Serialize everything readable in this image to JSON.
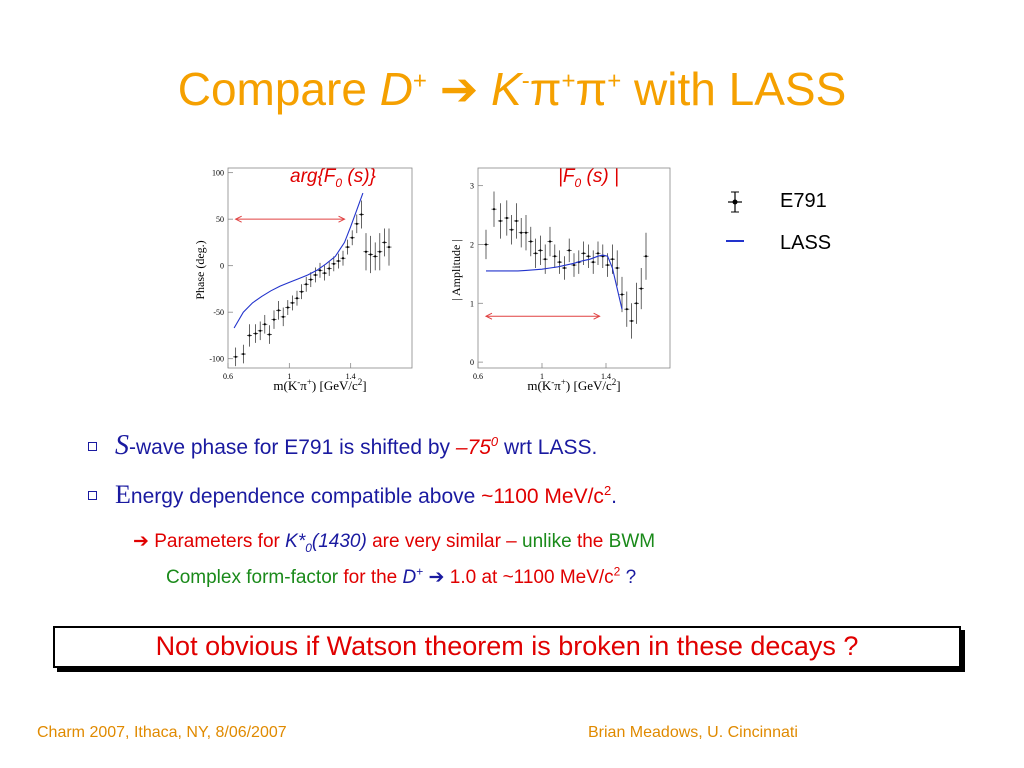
{
  "title": {
    "prefix": "Compare ",
    "D": "D",
    "D_sup": "+",
    "arrow": "➔",
    "K": "K",
    "K_sup": "-",
    "pi": "π",
    "pi1_sup": "+",
    "pi2_sup": "+",
    "suffix": " with LASS"
  },
  "legend": {
    "e791": "E791",
    "lass": "LASS"
  },
  "colors": {
    "title": "#f5a000",
    "red": "#e00000",
    "blue": "#1a1aa0",
    "green": "#1a8a1a",
    "lass_curve": "#2233cc"
  },
  "chart_data": [
    {
      "type": "scatter",
      "label_pre": "arg{F",
      "label_sub": "0",
      "label_post": " (s)}",
      "ylabel": "Phase (deg.)",
      "xlabel_pre": "m(K",
      "xlabel_sup1": "-",
      "xlabel_mid": "π",
      "xlabel_sup2": "+",
      "xlabel_post": ") [GeV/c",
      "xlabel_sup3": "2",
      "xlabel_end": "]",
      "xlim": [
        0.6,
        1.8
      ],
      "ylim": [
        -110,
        105
      ],
      "xticks": [
        "0.6",
        "1",
        "1.4"
      ],
      "xtick_values": [
        0.6,
        1.0,
        1.4
      ],
      "yticks": [
        "100",
        "50",
        "0",
        "-50",
        "-100"
      ],
      "ytick_values": [
        100,
        50,
        0,
        -50,
        -100
      ],
      "series": [
        {
          "name": "E791",
          "x": [
            0.65,
            0.7,
            0.74,
            0.78,
            0.81,
            0.84,
            0.87,
            0.9,
            0.93,
            0.96,
            0.99,
            1.02,
            1.05,
            1.08,
            1.11,
            1.14,
            1.17,
            1.2,
            1.23,
            1.26,
            1.29,
            1.32,
            1.35,
            1.38,
            1.41,
            1.44,
            1.47,
            1.5,
            1.53,
            1.56,
            1.59,
            1.62,
            1.65
          ],
          "y": [
            -98,
            -95,
            -75,
            -73,
            -70,
            -63,
            -74,
            -58,
            -48,
            -55,
            -45,
            -40,
            -35,
            -28,
            -20,
            -15,
            -10,
            -5,
            -8,
            -3,
            2,
            5,
            8,
            20,
            30,
            45,
            55,
            15,
            12,
            10,
            15,
            25,
            20
          ],
          "err": [
            10,
            10,
            12,
            10,
            10,
            10,
            10,
            10,
            10,
            10,
            8,
            8,
            8,
            8,
            8,
            8,
            8,
            8,
            8,
            8,
            8,
            8,
            8,
            8,
            8,
            10,
            15,
            20,
            20,
            15,
            20,
            15,
            20
          ]
        },
        {
          "name": "LASS",
          "x": [
            0.64,
            0.7,
            0.76,
            0.82,
            0.88,
            0.94,
            1.0,
            1.06,
            1.12,
            1.18,
            1.24,
            1.3,
            1.36,
            1.4,
            1.44,
            1.48
          ],
          "y": [
            -67,
            -50,
            -40,
            -33,
            -27,
            -22,
            -18,
            -14,
            -10,
            -5,
            2,
            10,
            25,
            42,
            60,
            78
          ]
        }
      ],
      "annotation_arrow_y": 50,
      "annotation_arrow_x": [
        0.65,
        1.36
      ]
    },
    {
      "type": "scatter",
      "label_pre": "|F",
      "label_sub": "0",
      "label_post": " (s) |",
      "ylabel": "| Amplitude |",
      "xlabel_pre": "m(K",
      "xlabel_sup1": "-",
      "xlabel_mid": "π",
      "xlabel_sup2": "+",
      "xlabel_post": ") [GeV/c",
      "xlabel_sup3": "2",
      "xlabel_end": "]",
      "xlim": [
        0.6,
        1.8
      ],
      "ylim": [
        -0.1,
        3.3
      ],
      "xticks": [
        "0.6",
        "1",
        "1.4"
      ],
      "xtick_values": [
        0.6,
        1.0,
        1.4
      ],
      "yticks": [
        "3",
        "2",
        "1",
        "0"
      ],
      "ytick_values": [
        3,
        2,
        1,
        0
      ],
      "series": [
        {
          "name": "E791",
          "x": [
            0.65,
            0.7,
            0.74,
            0.78,
            0.81,
            0.84,
            0.87,
            0.9,
            0.93,
            0.96,
            0.99,
            1.02,
            1.05,
            1.08,
            1.11,
            1.14,
            1.17,
            1.2,
            1.23,
            1.26,
            1.29,
            1.32,
            1.35,
            1.38,
            1.41,
            1.44,
            1.47,
            1.5,
            1.53,
            1.56,
            1.59,
            1.62,
            1.65
          ],
          "y": [
            2.0,
            2.6,
            2.4,
            2.45,
            2.25,
            2.4,
            2.2,
            2.2,
            2.05,
            1.85,
            1.9,
            1.75,
            2.05,
            1.8,
            1.7,
            1.6,
            1.9,
            1.65,
            1.7,
            1.85,
            1.8,
            1.7,
            1.85,
            1.8,
            1.65,
            1.75,
            1.6,
            1.15,
            0.9,
            0.7,
            1.0,
            1.25,
            1.8
          ],
          "err": [
            0.25,
            0.3,
            0.3,
            0.3,
            0.25,
            0.3,
            0.25,
            0.3,
            0.25,
            0.25,
            0.25,
            0.25,
            0.25,
            0.2,
            0.2,
            0.2,
            0.2,
            0.2,
            0.2,
            0.2,
            0.2,
            0.2,
            0.2,
            0.2,
            0.2,
            0.25,
            0.3,
            0.3,
            0.3,
            0.3,
            0.35,
            0.35,
            0.4
          ]
        },
        {
          "name": "LASS",
          "x": [
            0.65,
            0.7,
            0.75,
            0.8,
            0.85,
            0.9,
            0.95,
            1.0,
            1.05,
            1.1,
            1.15,
            1.2,
            1.25,
            1.3,
            1.35,
            1.38,
            1.41,
            1.44,
            1.47,
            1.5
          ],
          "y": [
            1.55,
            1.55,
            1.55,
            1.55,
            1.55,
            1.56,
            1.57,
            1.58,
            1.6,
            1.62,
            1.65,
            1.68,
            1.72,
            1.75,
            1.8,
            1.82,
            1.8,
            1.6,
            1.25,
            0.9
          ]
        }
      ],
      "annotation_arrow_y": 0.78,
      "annotation_arrow_x": [
        0.65,
        1.36
      ]
    }
  ],
  "bullets": [
    {
      "S": "S",
      "text1": "-wave phase for E791 is shifted by ",
      "value": "–75",
      "value_sup": "0",
      "text2": " wrt LASS."
    },
    {
      "E": "E",
      "text1": "nergy dependence compatible above ",
      "value": "~1100 MeV/c",
      "value_sup": "2",
      "text2": "."
    }
  ],
  "sub1": {
    "arrow": "➔",
    "a": " Parameters for ",
    "k": "K*",
    "k_sub": "0",
    "k_par": "(1430)",
    "b": " are very similar – ",
    "c": "unlike",
    "d": " the ",
    "e": "BWM"
  },
  "sub2": {
    "a": "Complex form-factor",
    "b": " for the ",
    "D": "D",
    "D_sup": "+",
    "arrow": " ➔ ",
    "c": "1.0",
    "d": " at ~1100 MeV/c",
    "d_sup": "2",
    "e": " ?"
  },
  "box_text": "Not obvious if Watson theorem is broken in these decays ?",
  "footer": {
    "left": "Charm 2007, Ithaca, NY, 8/06/2007",
    "right": "Brian Meadows, U. Cincinnati"
  }
}
